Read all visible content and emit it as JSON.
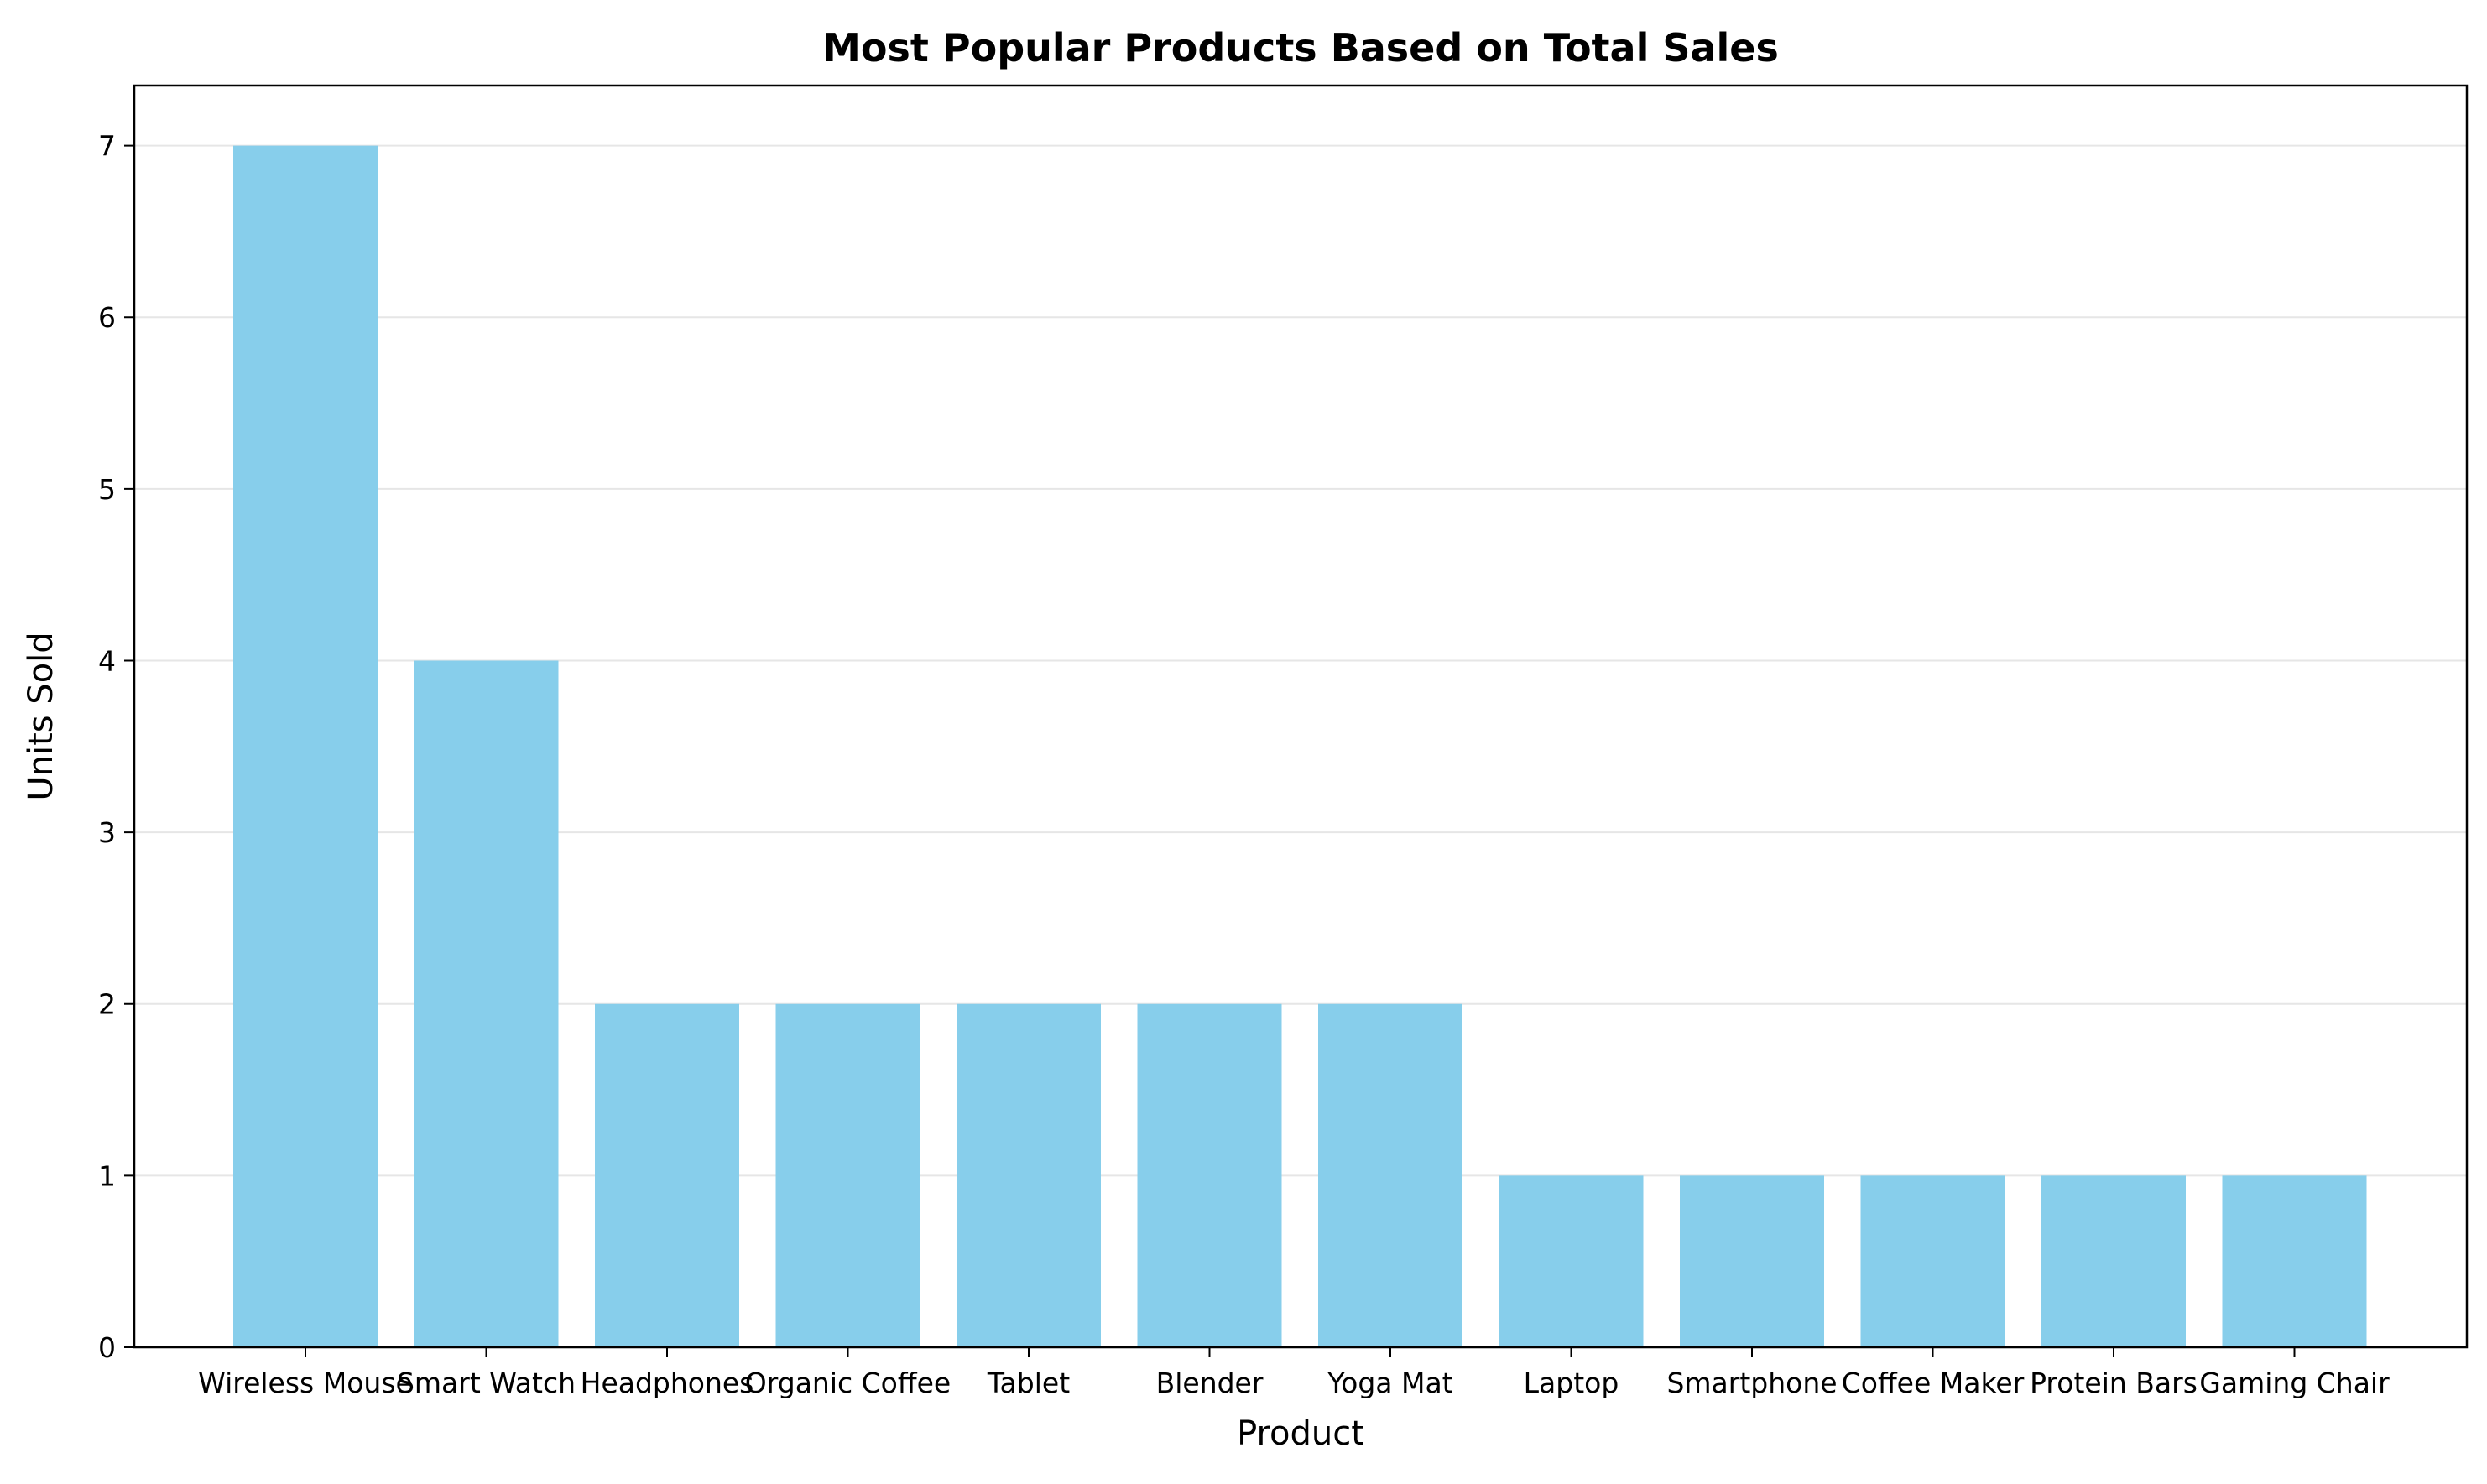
{
  "chart_data": {
    "type": "bar",
    "title": "Most Popular Products Based on Total Sales",
    "xlabel": "Product",
    "ylabel": "Units Sold",
    "categories": [
      "Wireless Mouse",
      "Smart Watch",
      "Headphones",
      "Organic Coffee",
      "Tablet",
      "Blender",
      "Yoga Mat",
      "Laptop",
      "Smartphone",
      "Coffee Maker",
      "Protein Bars",
      "Gaming Chair"
    ],
    "values": [
      7,
      4,
      2,
      2,
      2,
      2,
      2,
      1,
      1,
      1,
      1,
      1
    ],
    "yticks": [
      "0",
      "1",
      "2",
      "3",
      "4",
      "5",
      "6",
      "7"
    ],
    "ylim": [
      0,
      7.35
    ],
    "grid": "y-axis",
    "bar_color": "#87CEEB",
    "legend": "none"
  }
}
